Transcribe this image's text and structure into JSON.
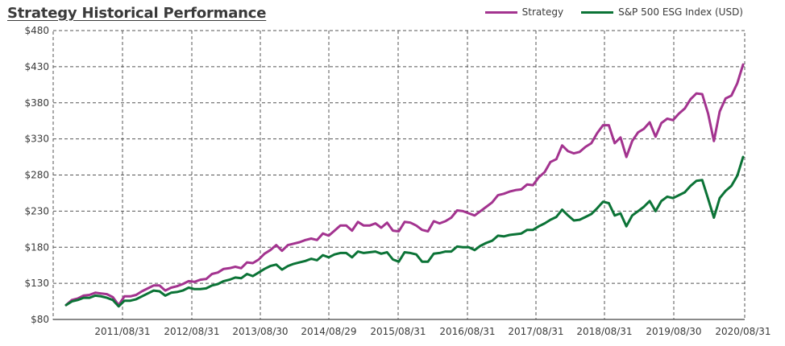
{
  "title": "Strategy Historical Performance",
  "chart_data": {
    "type": "line",
    "title": "Strategy Historical Performance",
    "xlabel": "",
    "ylabel": "",
    "ylim": [
      80,
      480
    ],
    "y_ticks": [
      "$80",
      "$130",
      "$180",
      "$230",
      "$280",
      "$330",
      "$380",
      "$430",
      "$480"
    ],
    "x_ticks": [
      "2011/08/31",
      "2012/08/31",
      "2013/08/30",
      "2014/08/29",
      "2015/08/31",
      "2016/08/31",
      "2017/08/31",
      "2018/08/31",
      "2019/08/30",
      "2020/08/31"
    ],
    "grid": true,
    "legend_position": "top-right",
    "series": [
      {
        "name": "Strategy",
        "color": "#a3338f",
        "values": [
          100,
          107,
          109,
          113,
          114,
          117,
          116,
          115,
          111,
          100,
          112,
          112,
          114,
          119,
          123,
          127,
          127,
          120,
          124,
          126,
          129,
          133,
          132,
          135,
          136,
          143,
          145,
          150,
          151,
          153,
          151,
          159,
          158,
          163,
          171,
          176,
          183,
          175,
          183,
          185,
          187,
          190,
          192,
          190,
          199,
          196,
          203,
          210,
          210,
          203,
          215,
          210,
          210,
          213,
          207,
          214,
          203,
          202,
          215,
          214,
          210,
          204,
          202,
          216,
          213,
          216,
          221,
          231,
          230,
          227,
          224,
          230,
          236,
          242,
          252,
          254,
          257,
          259,
          260,
          267,
          266,
          277,
          284,
          298,
          302,
          321,
          313,
          310,
          312,
          319,
          324,
          338,
          349,
          349,
          324,
          332,
          305,
          327,
          339,
          344,
          353,
          333,
          352,
          358,
          356,
          365,
          372,
          385,
          393,
          392,
          365,
          327,
          368,
          386,
          390,
          407,
          433
        ]
      },
      {
        "name": "S&P 500 ESG Index (USD)",
        "color": "#0b7336",
        "values": [
          100,
          105,
          107,
          110,
          110,
          113,
          112,
          110,
          107,
          98,
          106,
          106,
          108,
          112,
          116,
          120,
          119,
          113,
          117,
          118,
          120,
          124,
          122,
          122,
          123,
          127,
          129,
          133,
          135,
          138,
          137,
          143,
          140,
          145,
          150,
          154,
          156,
          149,
          154,
          157,
          159,
          161,
          164,
          162,
          169,
          166,
          170,
          172,
          172,
          166,
          174,
          172,
          173,
          174,
          171,
          173,
          163,
          160,
          173,
          172,
          170,
          160,
          160,
          171,
          172,
          174,
          174,
          181,
          180,
          180,
          176,
          182,
          186,
          189,
          196,
          195,
          197,
          198,
          199,
          204,
          204,
          209,
          213,
          218,
          222,
          232,
          224,
          217,
          218,
          222,
          226,
          234,
          243,
          241,
          224,
          227,
          209,
          224,
          230,
          236,
          244,
          230,
          244,
          250,
          248,
          252,
          256,
          265,
          272,
          273,
          247,
          221,
          248,
          258,
          265,
          279,
          305
        ]
      }
    ]
  }
}
